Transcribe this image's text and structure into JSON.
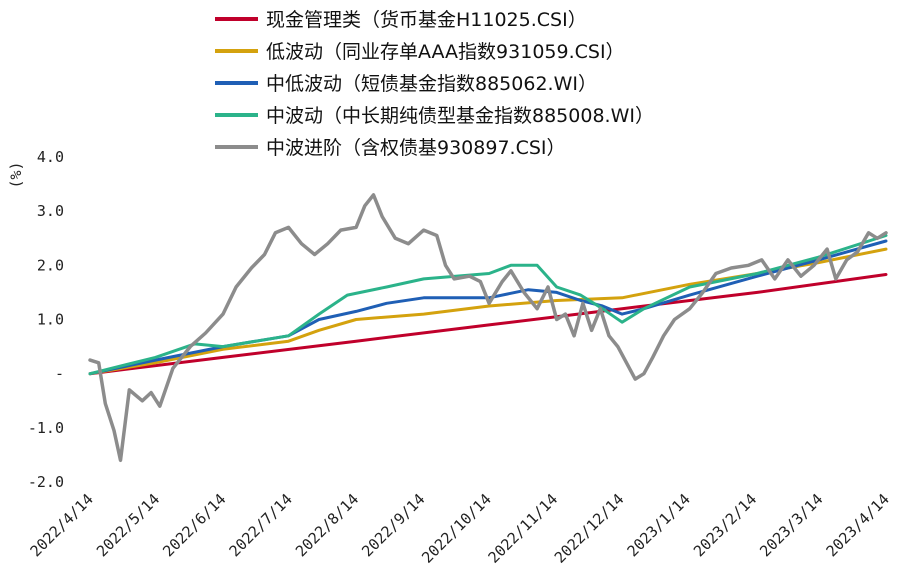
{
  "chart_data": {
    "type": "line",
    "title": "",
    "ylabel": "(%)",
    "xlabel": "",
    "ylim": [
      -2.0,
      4.0
    ],
    "yticks": [
      {
        "value": 4.0,
        "label": "4.0"
      },
      {
        "value": 3.0,
        "label": "3.0"
      },
      {
        "value": 2.0,
        "label": "2.0"
      },
      {
        "value": 1.0,
        "label": "1.0"
      },
      {
        "value": 0.0,
        "label": "-"
      },
      {
        "value": -1.0,
        "label": "-1.0"
      },
      {
        "value": -2.0,
        "label": "-2.0"
      }
    ],
    "xrange": [
      "2022-04-14",
      "2023-04-14"
    ],
    "xtick_labels": [
      "2022/4/14",
      "2022/5/14",
      "2022/6/14",
      "2022/7/14",
      "2022/8/14",
      "2022/9/14",
      "2022/10/14",
      "2022/11/14",
      "2022/12/14",
      "2023/1/14",
      "2023/2/14",
      "2023/3/14",
      "2023/4/14"
    ],
    "legend_position": "top-center",
    "grid": false,
    "series": [
      {
        "name": "现金管理类（货币基金H11025.CSI）",
        "color": "#c0002b",
        "points": [
          [
            "2022-04-14",
            0.0
          ],
          [
            "2022-06-14",
            0.3
          ],
          [
            "2022-08-14",
            0.6
          ],
          [
            "2022-10-14",
            0.9
          ],
          [
            "2022-12-14",
            1.2
          ],
          [
            "2023-02-14",
            1.5
          ],
          [
            "2023-04-14",
            1.83
          ]
        ]
      },
      {
        "name": "低波动（同业存单AAA指数931059.CSI）",
        "color": "#d4a20e",
        "points": [
          [
            "2022-04-14",
            0.0
          ],
          [
            "2022-05-14",
            0.2
          ],
          [
            "2022-06-14",
            0.45
          ],
          [
            "2022-07-14",
            0.6
          ],
          [
            "2022-07-28",
            0.8
          ],
          [
            "2022-08-14",
            1.0
          ],
          [
            "2022-09-14",
            1.1
          ],
          [
            "2022-10-14",
            1.25
          ],
          [
            "2022-11-14",
            1.35
          ],
          [
            "2022-12-14",
            1.4
          ],
          [
            "2023-01-14",
            1.65
          ],
          [
            "2023-02-14",
            1.85
          ],
          [
            "2023-03-14",
            2.05
          ],
          [
            "2023-04-14",
            2.3
          ]
        ]
      },
      {
        "name": "中低波动（短债基金指数885062.WI）",
        "color": "#1f5fb5",
        "points": [
          [
            "2022-04-14",
            0.0
          ],
          [
            "2022-05-14",
            0.25
          ],
          [
            "2022-06-14",
            0.5
          ],
          [
            "2022-07-14",
            0.7
          ],
          [
            "2022-07-28",
            1.0
          ],
          [
            "2022-08-14",
            1.15
          ],
          [
            "2022-08-28",
            1.3
          ],
          [
            "2022-09-14",
            1.4
          ],
          [
            "2022-10-14",
            1.4
          ],
          [
            "2022-11-01",
            1.55
          ],
          [
            "2022-11-14",
            1.5
          ],
          [
            "2022-11-25",
            1.35
          ],
          [
            "2022-12-05",
            1.25
          ],
          [
            "2022-12-14",
            1.1
          ],
          [
            "2022-12-24",
            1.2
          ],
          [
            "2023-01-14",
            1.45
          ],
          [
            "2023-02-14",
            1.8
          ],
          [
            "2023-03-14",
            2.1
          ],
          [
            "2023-04-14",
            2.45
          ]
        ]
      },
      {
        "name": "中波动（中长期纯债型基金指数885008.WI）",
        "color": "#2bb38a",
        "points": [
          [
            "2022-04-14",
            0.0
          ],
          [
            "2022-05-14",
            0.3
          ],
          [
            "2022-06-01",
            0.55
          ],
          [
            "2022-06-14",
            0.5
          ],
          [
            "2022-07-14",
            0.7
          ],
          [
            "2022-07-28",
            1.1
          ],
          [
            "2022-08-10",
            1.45
          ],
          [
            "2022-08-28",
            1.6
          ],
          [
            "2022-09-14",
            1.75
          ],
          [
            "2022-10-14",
            1.85
          ],
          [
            "2022-10-24",
            2.0
          ],
          [
            "2022-11-05",
            2.0
          ],
          [
            "2022-11-14",
            1.6
          ],
          [
            "2022-11-25",
            1.45
          ],
          [
            "2022-12-05",
            1.2
          ],
          [
            "2022-12-14",
            0.95
          ],
          [
            "2022-12-24",
            1.2
          ],
          [
            "2023-01-14",
            1.6
          ],
          [
            "2023-02-14",
            1.85
          ],
          [
            "2023-03-14",
            2.15
          ],
          [
            "2023-04-14",
            2.55
          ]
        ]
      },
      {
        "name": "中波进阶（含权债基930897.CSI）",
        "color": "#8c8c8c",
        "points": [
          [
            "2022-04-14",
            0.25
          ],
          [
            "2022-04-18",
            0.2
          ],
          [
            "2022-04-21",
            -0.55
          ],
          [
            "2022-04-25",
            -1.05
          ],
          [
            "2022-04-28",
            -1.6
          ],
          [
            "2022-05-02",
            -0.3
          ],
          [
            "2022-05-08",
            -0.5
          ],
          [
            "2022-05-12",
            -0.35
          ],
          [
            "2022-05-16",
            -0.6
          ],
          [
            "2022-05-22",
            0.1
          ],
          [
            "2022-05-30",
            0.5
          ],
          [
            "2022-06-06",
            0.75
          ],
          [
            "2022-06-14",
            1.1
          ],
          [
            "2022-06-20",
            1.6
          ],
          [
            "2022-06-27",
            1.95
          ],
          [
            "2022-07-03",
            2.2
          ],
          [
            "2022-07-08",
            2.6
          ],
          [
            "2022-07-14",
            2.7
          ],
          [
            "2022-07-20",
            2.4
          ],
          [
            "2022-07-26",
            2.2
          ],
          [
            "2022-08-01",
            2.4
          ],
          [
            "2022-08-07",
            2.65
          ],
          [
            "2022-08-14",
            2.7
          ],
          [
            "2022-08-18",
            3.1
          ],
          [
            "2022-08-22",
            3.3
          ],
          [
            "2022-08-26",
            2.9
          ],
          [
            "2022-09-01",
            2.5
          ],
          [
            "2022-09-07",
            2.4
          ],
          [
            "2022-09-14",
            2.65
          ],
          [
            "2022-09-20",
            2.55
          ],
          [
            "2022-09-24",
            2.0
          ],
          [
            "2022-09-28",
            1.75
          ],
          [
            "2022-10-05",
            1.8
          ],
          [
            "2022-10-10",
            1.7
          ],
          [
            "2022-10-14",
            1.3
          ],
          [
            "2022-10-20",
            1.7
          ],
          [
            "2022-10-24",
            1.9
          ],
          [
            "2022-10-30",
            1.5
          ],
          [
            "2022-11-05",
            1.2
          ],
          [
            "2022-11-10",
            1.6
          ],
          [
            "2022-11-14",
            1.0
          ],
          [
            "2022-11-18",
            1.1
          ],
          [
            "2022-11-22",
            0.7
          ],
          [
            "2022-11-26",
            1.3
          ],
          [
            "2022-11-30",
            0.8
          ],
          [
            "2022-12-04",
            1.2
          ],
          [
            "2022-12-08",
            0.7
          ],
          [
            "2022-12-12",
            0.5
          ],
          [
            "2022-12-16",
            0.2
          ],
          [
            "2022-12-20",
            -0.1
          ],
          [
            "2022-12-24",
            0.0
          ],
          [
            "2022-12-28",
            0.3
          ],
          [
            "2023-01-02",
            0.7
          ],
          [
            "2023-01-07",
            1.0
          ],
          [
            "2023-01-14",
            1.2
          ],
          [
            "2023-01-20",
            1.5
          ],
          [
            "2023-01-26",
            1.85
          ],
          [
            "2023-02-02",
            1.95
          ],
          [
            "2023-02-10",
            2.0
          ],
          [
            "2023-02-16",
            2.1
          ],
          [
            "2023-02-22",
            1.75
          ],
          [
            "2023-02-28",
            2.1
          ],
          [
            "2023-03-06",
            1.8
          ],
          [
            "2023-03-12",
            2.0
          ],
          [
            "2023-03-18",
            2.3
          ],
          [
            "2023-03-22",
            1.75
          ],
          [
            "2023-03-27",
            2.1
          ],
          [
            "2023-04-01",
            2.25
          ],
          [
            "2023-04-06",
            2.6
          ],
          [
            "2023-04-10",
            2.5
          ],
          [
            "2023-04-14",
            2.6
          ]
        ]
      }
    ]
  }
}
